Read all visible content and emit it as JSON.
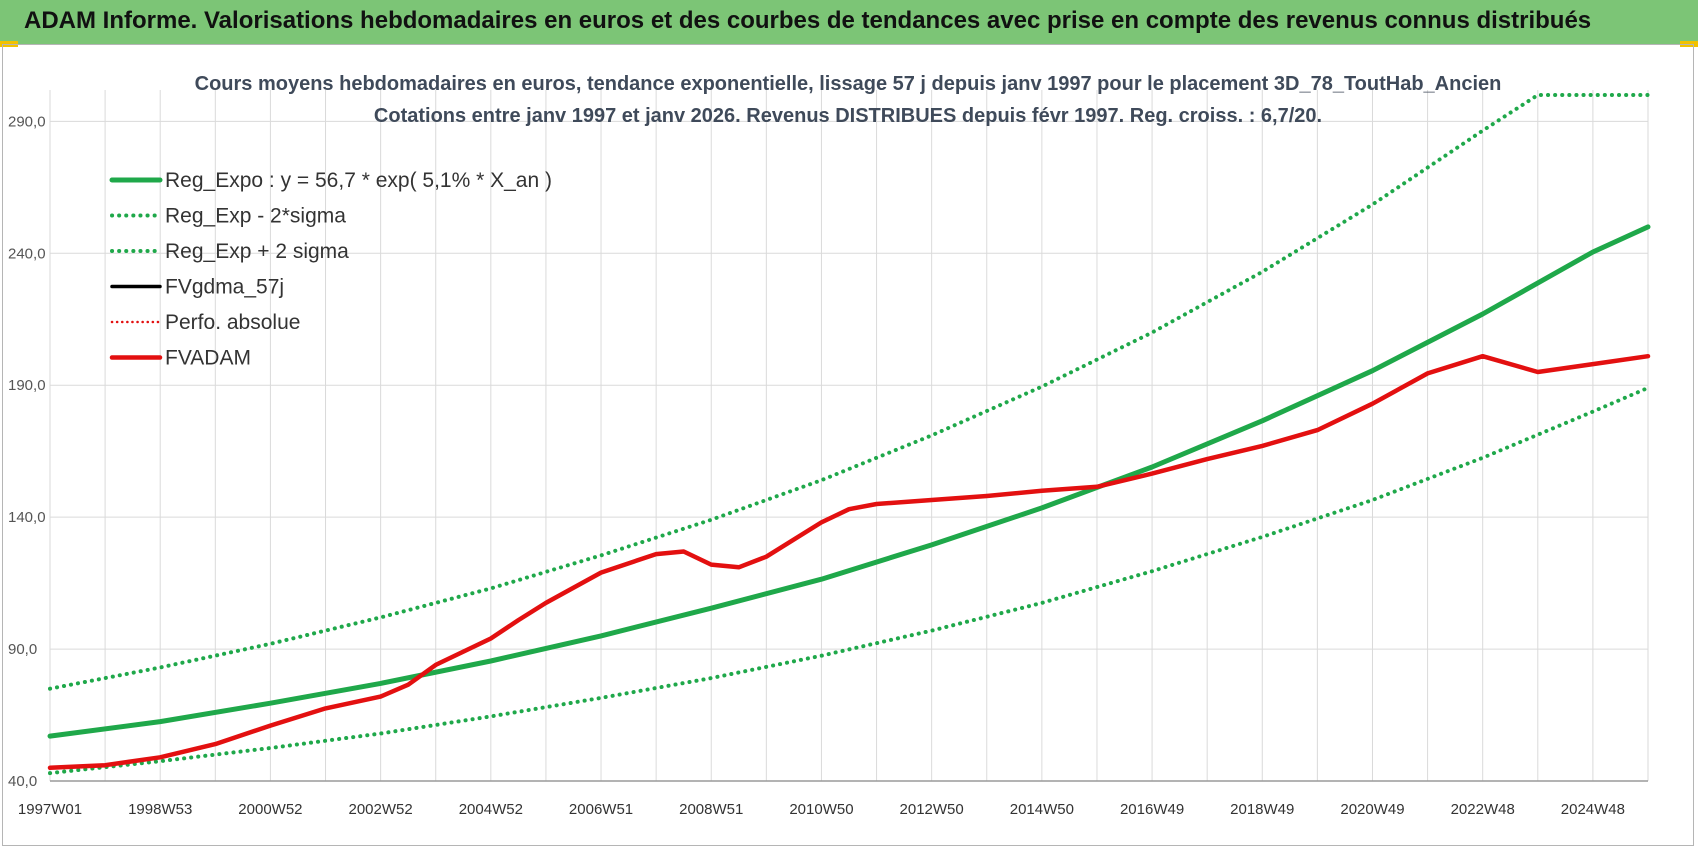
{
  "header": {
    "title": "ADAM Informe. Valorisations hebdomadaires en euros et des courbes de tendances avec prise en compte des revenus connus distribués"
  },
  "colors": {
    "header_bg": "#7cc576",
    "trend": "#1fa84a",
    "sigma": "#1fa84a",
    "fv": "#e31010",
    "gdma": "#000000",
    "perfo": "#e31010"
  },
  "chart_data": {
    "type": "line",
    "title": "Cours moyens hebdomadaires en euros, tendance exponentielle, lissage 57 j depuis janv 1997 pour le placement 3D_78_ToutHab_Ancien",
    "subtitle": "Cotations entre janv 1997 et janv 2026. Revenus DISTRIBUES depuis févr 1997. Reg. croiss. : 6,7/20.",
    "xlabel": "",
    "ylabel": "",
    "x_range": [
      1997.0,
      2026.0
    ],
    "ylim": [
      40,
      300
    ],
    "y_ticks": [
      "40,0",
      "90,0",
      "140,0",
      "190,0",
      "240,0",
      "290,0"
    ],
    "x_ticks": [
      {
        "year": 1997.0,
        "label": "1997W01"
      },
      {
        "year": 1999.0,
        "label": "1998W53"
      },
      {
        "year": 2001.0,
        "label": "2000W52"
      },
      {
        "year": 2003.0,
        "label": "2002W52"
      },
      {
        "year": 2005.0,
        "label": "2004W52"
      },
      {
        "year": 2007.0,
        "label": "2006W51"
      },
      {
        "year": 2009.0,
        "label": "2008W51"
      },
      {
        "year": 2011.0,
        "label": "2010W50"
      },
      {
        "year": 2013.0,
        "label": "2012W50"
      },
      {
        "year": 2015.0,
        "label": "2014W50"
      },
      {
        "year": 2017.0,
        "label": "2016W49"
      },
      {
        "year": 2019.0,
        "label": "2018W49"
      },
      {
        "year": 2021.0,
        "label": "2020W49"
      },
      {
        "year": 2023.0,
        "label": "2022W48"
      },
      {
        "year": 2025.0,
        "label": "2024W48"
      }
    ],
    "legend": [
      {
        "key": "reg_expo",
        "label": "Reg_Expo : y = 56,7 * exp( 5,1% *  X_an )"
      },
      {
        "key": "reg_minus",
        "label": "Reg_Exp - 2*sigma"
      },
      {
        "key": "reg_plus",
        "label": "Reg_Exp + 2 sigma"
      },
      {
        "key": "fvgdma",
        "label": "FVgdma_57j"
      },
      {
        "key": "perfo",
        "label": "Perfo. absolue"
      },
      {
        "key": "fvadam",
        "label": "FVADAM"
      }
    ],
    "series": [
      {
        "key": "reg_expo",
        "name": "Reg_Expo",
        "style": "solid",
        "x": [
          1997.0,
          1999.0,
          2001.0,
          2003.0,
          2005.0,
          2007.0,
          2009.0,
          2011.0,
          2013.0,
          2015.0,
          2017.0,
          2019.0,
          2021.0,
          2023.0,
          2025.0,
          2026.0
        ],
        "values": [
          57.0,
          62.5,
          69.5,
          77.0,
          85.5,
          95.0,
          105.5,
          116.5,
          129.5,
          143.5,
          159.0,
          176.5,
          195.5,
          217.0,
          240.5,
          250.0
        ]
      },
      {
        "key": "reg_minus",
        "name": "Reg_Exp - 2*sigma",
        "style": "dotted",
        "x": [
          1997.0,
          1999.0,
          2001.0,
          2003.0,
          2005.0,
          2007.0,
          2009.0,
          2011.0,
          2013.0,
          2015.0,
          2017.0,
          2019.0,
          2021.0,
          2023.0,
          2025.0,
          2026.0
        ],
        "values": [
          43.0,
          47.5,
          52.5,
          58.0,
          64.5,
          71.5,
          79.0,
          87.5,
          97.0,
          107.5,
          119.5,
          132.5,
          146.5,
          162.5,
          180.0,
          189.0
        ]
      },
      {
        "key": "reg_plus",
        "name": "Reg_Exp + 2 sigma",
        "style": "dotted",
        "x": [
          1997.0,
          1999.0,
          2001.0,
          2003.0,
          2005.0,
          2007.0,
          2009.0,
          2011.0,
          2013.0,
          2015.0,
          2017.0,
          2019.0,
          2021.0,
          2023.0,
          2024.0,
          2025.0,
          2026.0
        ],
        "values": [
          75.0,
          83.0,
          92.0,
          102.0,
          113.0,
          125.5,
          139.0,
          154.0,
          171.0,
          189.5,
          210.0,
          233.0,
          258.5,
          286.5,
          300.0,
          300.0,
          300.0
        ]
      },
      {
        "key": "fvadam",
        "name": "FVADAM",
        "style": "solid",
        "x": [
          1997.0,
          1998.0,
          1999.0,
          2000.0,
          2001.0,
          2002.0,
          2003.0,
          2003.5,
          2004.0,
          2005.0,
          2005.5,
          2006.0,
          2007.0,
          2008.0,
          2008.5,
          2009.0,
          2009.5,
          2010.0,
          2011.0,
          2011.5,
          2012.0,
          2013.0,
          2014.0,
          2015.0,
          2016.0,
          2017.0,
          2018.0,
          2019.0,
          2020.0,
          2021.0,
          2022.0,
          2023.0,
          2024.0,
          2025.0,
          2026.0
        ],
        "values": [
          45.0,
          46.0,
          49.0,
          54.0,
          61.0,
          67.5,
          72.0,
          76.5,
          84.0,
          94.0,
          101.0,
          107.5,
          119.0,
          126.0,
          127.0,
          122.0,
          121.0,
          125.0,
          138.0,
          143.0,
          145.0,
          146.5,
          148.0,
          150.0,
          151.5,
          156.5,
          162.0,
          167.0,
          173.0,
          183.0,
          194.5,
          201.0,
          195.0,
          198.0,
          201.0
        ]
      }
    ]
  }
}
